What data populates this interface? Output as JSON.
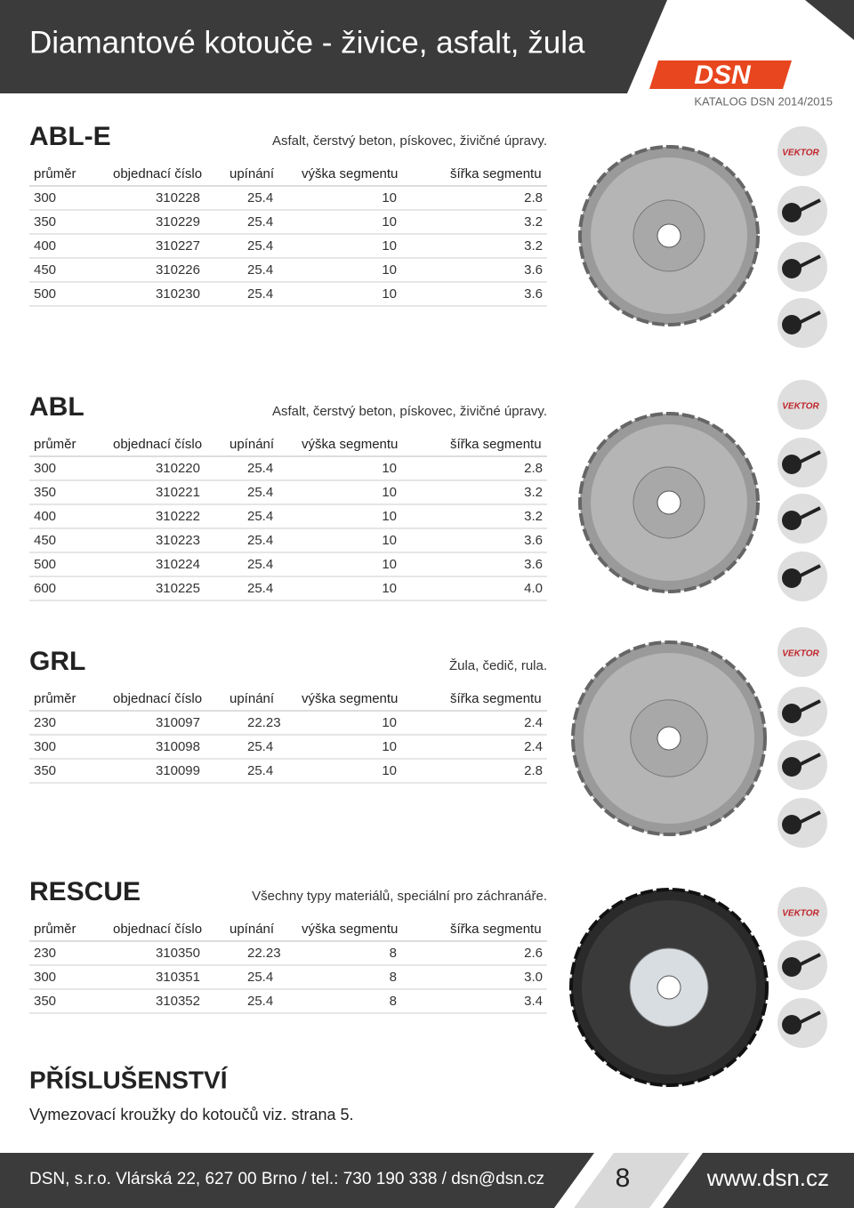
{
  "header": {
    "title": "Diamantové kotouče - živice, asfalt, žula",
    "logo": "DSN",
    "catalog": "KATALOG DSN 2014/2015"
  },
  "badge": "VEKTOR",
  "sections": [
    {
      "name": "ABL-E",
      "description": "Asfalt, čerstvý beton, pískovec, živičné úpravy.",
      "columns": [
        "průměr",
        "objednací číslo",
        "upínání",
        "výška segmentu",
        "šířka segmentu"
      ],
      "rows": [
        [
          "300",
          "310228",
          "25.4",
          "10",
          "2.8"
        ],
        [
          "350",
          "310229",
          "25.4",
          "10",
          "3.2"
        ],
        [
          "400",
          "310227",
          "25.4",
          "10",
          "3.2"
        ],
        [
          "450",
          "310226",
          "25.4",
          "10",
          "3.6"
        ],
        [
          "500",
          "310230",
          "25.4",
          "10",
          "3.6"
        ]
      ]
    },
    {
      "name": "ABL",
      "description": "Asfalt, čerstvý beton, pískovec, živičné úpravy.",
      "columns": [
        "průměr",
        "objednací číslo",
        "upínání",
        "výška segmentu",
        "šířka segmentu"
      ],
      "rows": [
        [
          "300",
          "310220",
          "25.4",
          "10",
          "2.8"
        ],
        [
          "350",
          "310221",
          "25.4",
          "10",
          "3.2"
        ],
        [
          "400",
          "310222",
          "25.4",
          "10",
          "3.2"
        ],
        [
          "450",
          "310223",
          "25.4",
          "10",
          "3.6"
        ],
        [
          "500",
          "310224",
          "25.4",
          "10",
          "3.6"
        ],
        [
          "600",
          "310225",
          "25.4",
          "10",
          "4.0"
        ]
      ]
    },
    {
      "name": "GRL",
      "description": "Žula, čedič, rula.",
      "columns": [
        "průměr",
        "objednací číslo",
        "upínání",
        "výška segmentu",
        "šířka segmentu"
      ],
      "rows": [
        [
          "230",
          "310097",
          "22.23",
          "10",
          "2.4"
        ],
        [
          "300",
          "310098",
          "25.4",
          "10",
          "2.4"
        ],
        [
          "350",
          "310099",
          "25.4",
          "10",
          "2.8"
        ]
      ]
    },
    {
      "name": "RESCUE",
      "description": "Všechny typy materiálů, speciální pro záchranáře.",
      "columns": [
        "průměr",
        "objednací číslo",
        "upínání",
        "výška segmentu",
        "šířka segmentu"
      ],
      "rows": [
        [
          "230",
          "310350",
          "22.23",
          "8",
          "2.6"
        ],
        [
          "300",
          "310351",
          "25.4",
          "8",
          "3.0"
        ],
        [
          "350",
          "310352",
          "25.4",
          "8",
          "3.4"
        ]
      ]
    }
  ],
  "accessories": {
    "title": "PŘÍSLUŠENSTVÍ",
    "text": "Vymezovací kroužky do kotoučů viz. strana 5."
  },
  "footer": {
    "address": "DSN, s.r.o. Vlárská 22, 627 00 Brno / tel.: 730 190 338 / dsn@dsn.cz",
    "page": "8",
    "web": "www.dsn.cz"
  }
}
